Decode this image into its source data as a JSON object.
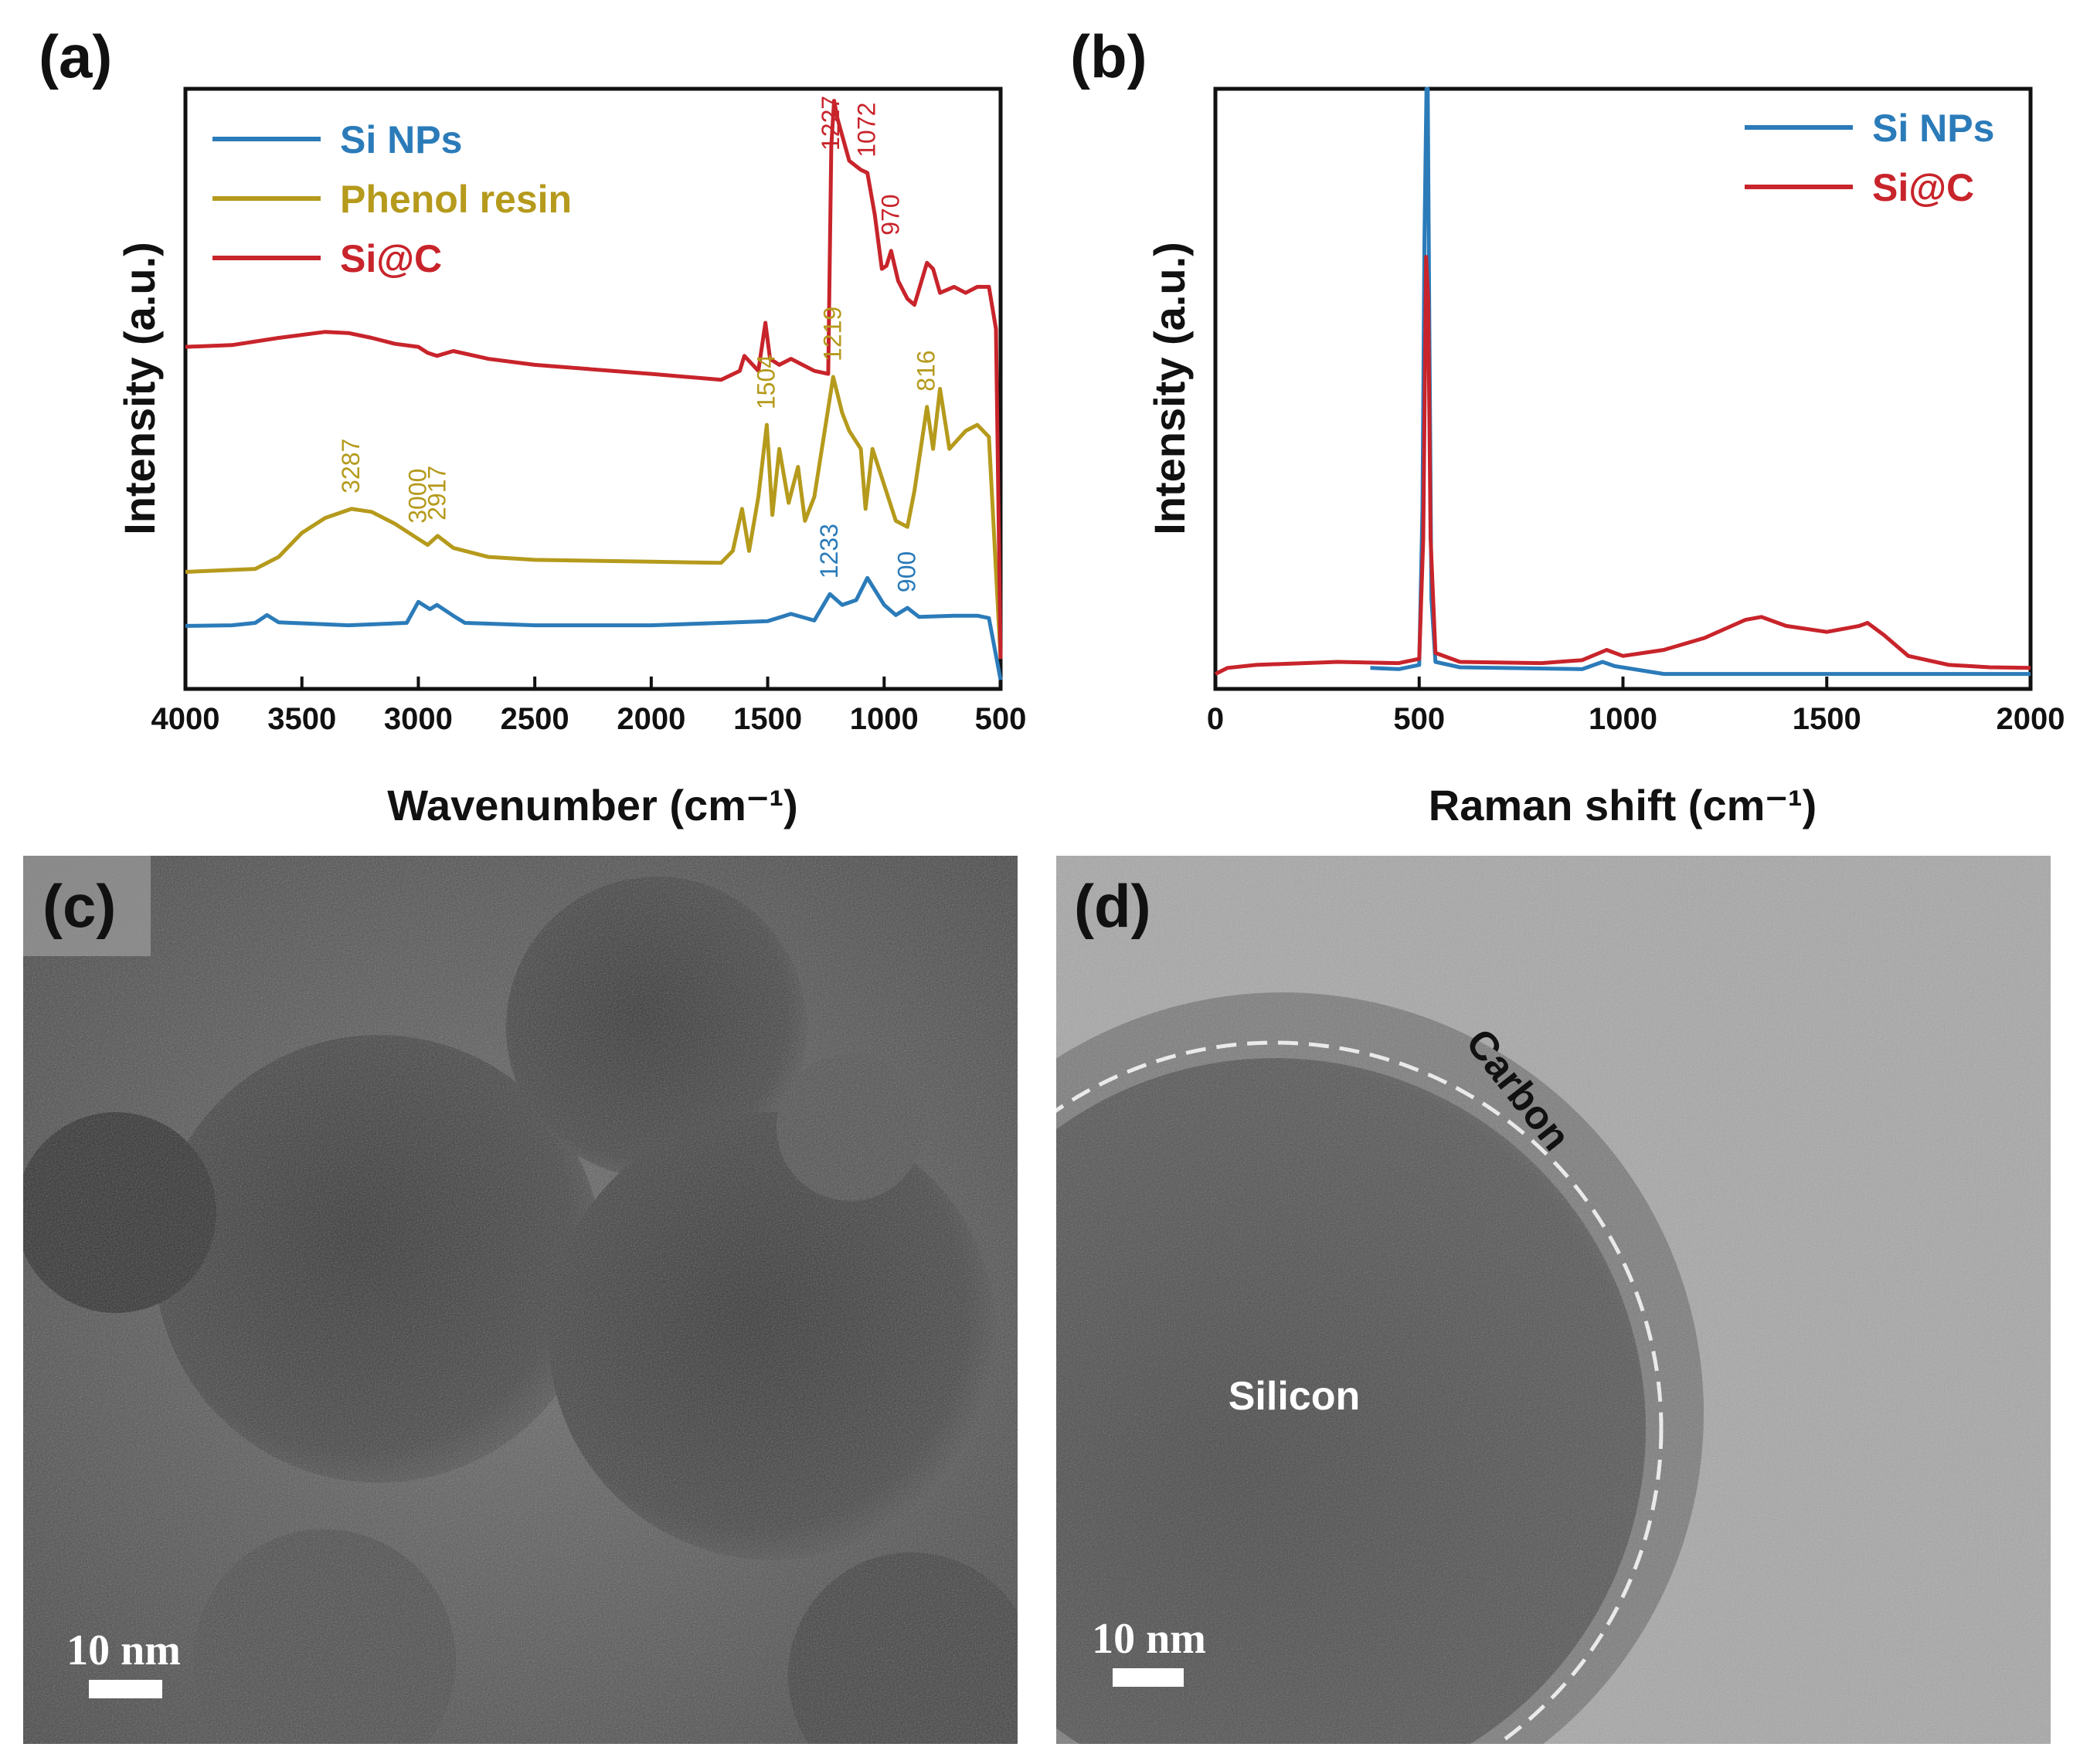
{
  "colors": {
    "si_nps": "#2b7bb9",
    "phenol_resin": "#b59a1c",
    "si_c": "#c8242b",
    "axis": "#111111"
  },
  "panels": {
    "a": {
      "letter": "(a)"
    },
    "b": {
      "letter": "(b)"
    },
    "c": {
      "letter": "(c)",
      "scale_bar": "10 nm"
    },
    "d": {
      "letter": "(d)",
      "scale_bar": "10 nm",
      "carbon_label": "Carbon",
      "silicon_label": "Silicon"
    }
  },
  "chart_data": [
    {
      "panel": "a",
      "type": "line",
      "xlabel": "Wavenumber (cm⁻¹)",
      "ylabel": "Intensity (a.u.)",
      "xlim": [
        4000,
        500
      ],
      "ylim": [
        0,
        100
      ],
      "x_reversed": true,
      "x_ticks": [
        4000,
        3500,
        3000,
        2500,
        2000,
        1500,
        1000,
        500
      ],
      "legend": {
        "position": "top-left",
        "entries": [
          "Si NPs",
          "Phenol resin",
          "Si@C"
        ]
      },
      "series": [
        {
          "name": "Si NPs",
          "color": "#2b7bb9",
          "points": [
            [
              4000,
              10.5
            ],
            [
              3800,
              10.6
            ],
            [
              3700,
              11.0
            ],
            [
              3650,
              12.3
            ],
            [
              3600,
              11.1
            ],
            [
              3300,
              10.6
            ],
            [
              3050,
              11
            ],
            [
              3000,
              14.5
            ],
            [
              2950,
              13.3
            ],
            [
              2920,
              14.0
            ],
            [
              2850,
              12.2
            ],
            [
              2800,
              11
            ],
            [
              2500,
              10.6
            ],
            [
              2000,
              10.6
            ],
            [
              1700,
              11
            ],
            [
              1500,
              11.3
            ],
            [
              1400,
              12.5
            ],
            [
              1300,
              11.4
            ],
            [
              1233,
              15.8
            ],
            [
              1180,
              14
            ],
            [
              1120,
              14.8
            ],
            [
              1072,
              18.5
            ],
            [
              1000,
              14.0
            ],
            [
              950,
              12.3
            ],
            [
              900,
              13.5
            ],
            [
              850,
              12
            ],
            [
              700,
              12.2
            ],
            [
              600,
              12.2
            ],
            [
              550,
              11.8
            ],
            [
              500,
              1.5
            ]
          ]
        },
        {
          "name": "Phenol resin",
          "color": "#b59a1c",
          "points": [
            [
              4000,
              19.5
            ],
            [
              3700,
              20
            ],
            [
              3600,
              22
            ],
            [
              3500,
              26
            ],
            [
              3400,
              28.5
            ],
            [
              3287,
              30.0
            ],
            [
              3200,
              29.5
            ],
            [
              3100,
              27.5
            ],
            [
              3000,
              25
            ],
            [
              2960,
              24
            ],
            [
              2917,
              25.5
            ],
            [
              2850,
              23.5
            ],
            [
              2700,
              22
            ],
            [
              2500,
              21.5
            ],
            [
              2000,
              21.2
            ],
            [
              1700,
              21
            ],
            [
              1650,
              23
            ],
            [
              1610,
              30.0
            ],
            [
              1580,
              23
            ],
            [
              1540,
              32
            ],
            [
              1504,
              44.0
            ],
            [
              1480,
              29
            ],
            [
              1450,
              40
            ],
            [
              1410,
              31
            ],
            [
              1370,
              37
            ],
            [
              1340,
              28
            ],
            [
              1300,
              32
            ],
            [
              1219,
              52.0
            ],
            [
              1180,
              46
            ],
            [
              1150,
              43
            ],
            [
              1100,
              40
            ],
            [
              1080,
              30
            ],
            [
              1050,
              40
            ],
            [
              1000,
              34
            ],
            [
              950,
              28
            ],
            [
              900,
              27
            ],
            [
              870,
              33
            ],
            [
              816,
              47.0
            ],
            [
              790,
              40
            ],
            [
              760,
              50
            ],
            [
              720,
              40
            ],
            [
              650,
              43
            ],
            [
              600,
              44
            ],
            [
              550,
              42
            ],
            [
              500,
              5
            ]
          ]
        },
        {
          "name": "Si@C",
          "color": "#c8242b",
          "points": [
            [
              4000,
              57.0
            ],
            [
              3800,
              57.3
            ],
            [
              3600,
              58.5
            ],
            [
              3400,
              59.5
            ],
            [
              3300,
              59.3
            ],
            [
              3200,
              58.5
            ],
            [
              3100,
              57.5
            ],
            [
              3000,
              57
            ],
            [
              2960,
              56
            ],
            [
              2920,
              55.5
            ],
            [
              2850,
              56.3
            ],
            [
              2700,
              55
            ],
            [
              2500,
              54
            ],
            [
              2000,
              52.5
            ],
            [
              1700,
              51.5
            ],
            [
              1620,
              53
            ],
            [
              1600,
              55.5
            ],
            [
              1540,
              53
            ],
            [
              1510,
              61
            ],
            [
              1490,
              55
            ],
            [
              1450,
              54
            ],
            [
              1400,
              55
            ],
            [
              1300,
              53
            ],
            [
              1240,
              52.5
            ],
            [
              1227,
              90.5
            ],
            [
              1215,
              98.0
            ],
            [
              1200,
              95
            ],
            [
              1150,
              88
            ],
            [
              1100,
              86.5
            ],
            [
              1072,
              86
            ],
            [
              1040,
              79
            ],
            [
              1010,
              70
            ],
            [
              990,
              70.5
            ],
            [
              970,
              73
            ],
            [
              940,
              68
            ],
            [
              900,
              65
            ],
            [
              870,
              64
            ],
            [
              816,
              71
            ],
            [
              790,
              70
            ],
            [
              760,
              66
            ],
            [
              700,
              67
            ],
            [
              650,
              66
            ],
            [
              600,
              67
            ],
            [
              550,
              67
            ],
            [
              520,
              60
            ],
            [
              500,
              5
            ]
          ]
        }
      ],
      "peak_labels": [
        {
          "text": "1227",
          "x": 1227,
          "series": "Si@C"
        },
        {
          "text": "1072",
          "x": 1072,
          "series": "Si@C"
        },
        {
          "text": "970",
          "x": 970,
          "series": "Si@C"
        },
        {
          "text": "3287",
          "x": 3287,
          "series": "Phenol resin"
        },
        {
          "text": "3000",
          "x": 3000,
          "series": "Phenol resin"
        },
        {
          "text": "2917",
          "x": 2917,
          "series": "Phenol resin"
        },
        {
          "text": "1504",
          "x": 1504,
          "series": "Phenol resin"
        },
        {
          "text": "1219",
          "x": 1219,
          "series": "Phenol resin"
        },
        {
          "text": "816",
          "x": 816,
          "series": "Phenol resin"
        },
        {
          "text": "1233",
          "x": 1233,
          "series": "Si NPs"
        },
        {
          "text": "900",
          "x": 900,
          "series": "Si NPs"
        }
      ]
    },
    {
      "panel": "b",
      "type": "line",
      "xlabel": "Raman shift (cm⁻¹)",
      "ylabel": "Intensity (a.u.)",
      "xlim": [
        0,
        2000
      ],
      "ylim": [
        0,
        100
      ],
      "x_ticks": [
        0,
        500,
        1000,
        1500,
        2000
      ],
      "legend": {
        "position": "top-right",
        "entries": [
          "Si NPs",
          "Si@C"
        ]
      },
      "series": [
        {
          "name": "Si NPs",
          "color": "#2b7bb9",
          "points": [
            [
              380,
              3.5
            ],
            [
              450,
              3.3
            ],
            [
              500,
              4.0
            ],
            [
              508,
              30
            ],
            [
              513,
              75
            ],
            [
              518,
              100
            ],
            [
              521,
              100
            ],
            [
              525,
              60
            ],
            [
              530,
              15
            ],
            [
              540,
              4.5
            ],
            [
              600,
              3.6
            ],
            [
              900,
              3.3
            ],
            [
              950,
              4.5
            ],
            [
              980,
              3.8
            ],
            [
              1100,
              2.5
            ],
            [
              1500,
              2.5
            ],
            [
              2000,
              2.5
            ]
          ]
        },
        {
          "name": "Si@C",
          "color": "#c8242b",
          "points": [
            [
              0,
              2.5
            ],
            [
              30,
              3.5
            ],
            [
              100,
              4.0
            ],
            [
              300,
              4.5
            ],
            [
              450,
              4.3
            ],
            [
              500,
              5.0
            ],
            [
              510,
              25
            ],
            [
              517,
              72
            ],
            [
              522,
              65
            ],
            [
              528,
              25
            ],
            [
              540,
              6.0
            ],
            [
              600,
              4.5
            ],
            [
              800,
              4.3
            ],
            [
              900,
              4.8
            ],
            [
              960,
              6.5
            ],
            [
              1000,
              5.5
            ],
            [
              1100,
              6.5
            ],
            [
              1200,
              8.5
            ],
            [
              1300,
              11.5
            ],
            [
              1340,
              12.0
            ],
            [
              1400,
              10.5
            ],
            [
              1500,
              9.5
            ],
            [
              1580,
              10.5
            ],
            [
              1600,
              11.0
            ],
            [
              1640,
              9.0
            ],
            [
              1700,
              5.5
            ],
            [
              1800,
              4.0
            ],
            [
              1900,
              3.6
            ],
            [
              2000,
              3.5
            ]
          ]
        }
      ]
    }
  ]
}
